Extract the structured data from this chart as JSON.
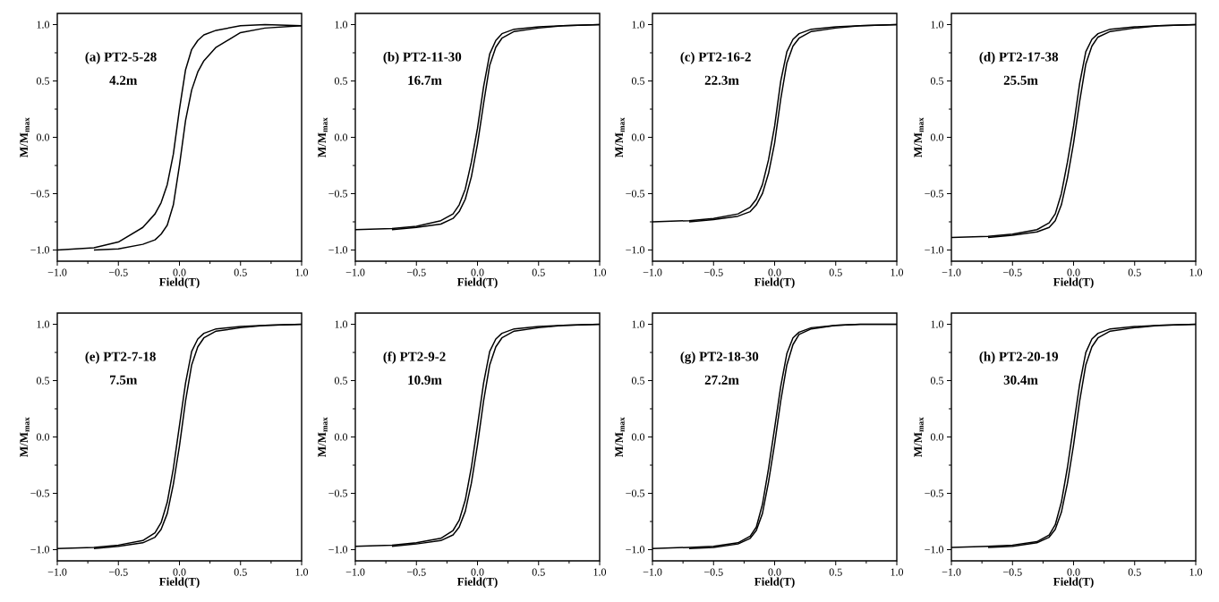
{
  "chart_data": [
    {
      "type": "line",
      "title": "(a) PT2-5-28",
      "subtitle": "4.2m",
      "xlabel": "Field(T)",
      "ylabel": "M/M$_{max}$",
      "xlim": [
        -1,
        1
      ],
      "ylim": [
        -1.1,
        1.1
      ],
      "xticks": [
        {
          "value": -1,
          "label": "−1.0"
        },
        {
          "value": -0.75,
          "label": null
        },
        {
          "value": -0.5,
          "label": "−0.5"
        },
        {
          "value": -0.25,
          "label": null
        },
        {
          "value": 0,
          "label": "0.0"
        },
        {
          "value": 0.25,
          "label": null
        },
        {
          "value": 0.5,
          "label": "0.5"
        },
        {
          "value": 0.75,
          "label": null
        },
        {
          "value": 1,
          "label": "1.0"
        }
      ],
      "yticks": [
        {
          "value": -1,
          "label": "−1.0"
        },
        {
          "value": -0.75,
          "label": null
        },
        {
          "value": -0.5,
          "label": "−0.5"
        },
        {
          "value": -0.25,
          "label": null
        },
        {
          "value": 0,
          "label": "0.0"
        },
        {
          "value": 0.25,
          "label": null
        },
        {
          "value": 0.5,
          "label": "0.5"
        },
        {
          "value": 0.75,
          "label": null
        },
        {
          "value": 1,
          "label": "1.0"
        }
      ],
      "x": [
        -1,
        -0.7,
        -0.5,
        -0.3,
        -0.2,
        -0.15,
        -0.1,
        -0.05,
        0,
        0.05,
        0.1,
        0.15,
        0.2,
        0.3,
        0.5,
        0.7,
        1
      ],
      "series": [
        {
          "color": "#000000",
          "values": [
            -1.0,
            -0.98,
            -0.93,
            -0.8,
            -0.68,
            -0.58,
            -0.42,
            -0.15,
            0.25,
            0.6,
            0.78,
            0.86,
            0.91,
            0.95,
            0.99,
            1.0,
            0.99
          ]
        },
        {
          "color": "#000000",
          "x": [
            -0.7,
            -0.5,
            -0.3,
            -0.2,
            -0.15,
            -0.1,
            -0.05,
            0,
            0.05,
            0.1,
            0.15,
            0.2,
            0.3,
            0.5,
            0.7,
            1
          ],
          "values": [
            -1.0,
            -0.99,
            -0.95,
            -0.91,
            -0.86,
            -0.78,
            -0.6,
            -0.25,
            0.15,
            0.42,
            0.58,
            0.68,
            0.8,
            0.93,
            0.97,
            0.99
          ]
        }
      ]
    },
    {
      "type": "line",
      "title": "(b) PT2-11-30",
      "subtitle": "16.7m",
      "xlabel": "Field(T)",
      "ylabel": "M/M$_{max}$",
      "xlim": [
        -1,
        1
      ],
      "ylim": [
        -1.1,
        1.1
      ],
      "xticks": [
        {
          "value": -1,
          "label": "−1.0"
        },
        {
          "value": -0.75,
          "label": null
        },
        {
          "value": -0.5,
          "label": "−0.5"
        },
        {
          "value": -0.25,
          "label": null
        },
        {
          "value": 0,
          "label": "0.0"
        },
        {
          "value": 0.25,
          "label": null
        },
        {
          "value": 0.5,
          "label": "0.5"
        },
        {
          "value": 0.75,
          "label": null
        },
        {
          "value": 1,
          "label": "1.0"
        }
      ],
      "yticks": [
        {
          "value": -1,
          "label": "−1.0"
        },
        {
          "value": -0.75,
          "label": null
        },
        {
          "value": -0.5,
          "label": "−0.5"
        },
        {
          "value": -0.25,
          "label": null
        },
        {
          "value": 0,
          "label": "0.0"
        },
        {
          "value": 0.25,
          "label": null
        },
        {
          "value": 0.5,
          "label": "0.5"
        },
        {
          "value": 0.75,
          "label": null
        },
        {
          "value": 1,
          "label": "1.0"
        }
      ],
      "x": [
        -1,
        -0.7,
        -0.5,
        -0.3,
        -0.2,
        -0.15,
        -0.1,
        -0.05,
        0,
        0.05,
        0.1,
        0.15,
        0.2,
        0.3,
        0.5,
        0.7,
        1
      ],
      "series": [
        {
          "color": "#000000",
          "values": [
            -0.82,
            -0.81,
            -0.79,
            -0.74,
            -0.68,
            -0.6,
            -0.46,
            -0.22,
            0.08,
            0.45,
            0.74,
            0.86,
            0.92,
            0.96,
            0.98,
            0.99,
            1.0
          ]
        },
        {
          "color": "#000000",
          "x": [
            -0.7,
            -0.5,
            -0.3,
            -0.2,
            -0.15,
            -0.1,
            -0.05,
            0,
            0.05,
            0.1,
            0.15,
            0.2,
            0.3,
            0.5,
            0.7,
            1
          ],
          "values": [
            -0.82,
            -0.8,
            -0.77,
            -0.72,
            -0.66,
            -0.55,
            -0.35,
            -0.06,
            0.3,
            0.64,
            0.8,
            0.88,
            0.94,
            0.97,
            0.99,
            1.0
          ]
        }
      ]
    },
    {
      "type": "line",
      "title": "(c) PT2-16-2",
      "subtitle": "22.3m",
      "xlabel": "Field(T)",
      "ylabel": "M/M$_{max}$",
      "xlim": [
        -1,
        1
      ],
      "ylim": [
        -1.1,
        1.1
      ],
      "xticks": [
        {
          "value": -1,
          "label": "−1.0"
        },
        {
          "value": -0.75,
          "label": null
        },
        {
          "value": -0.5,
          "label": "−0.5"
        },
        {
          "value": -0.25,
          "label": null
        },
        {
          "value": 0,
          "label": "0.0"
        },
        {
          "value": 0.25,
          "label": null
        },
        {
          "value": 0.5,
          "label": "0.5"
        },
        {
          "value": 0.75,
          "label": null
        },
        {
          "value": 1,
          "label": "1.0"
        }
      ],
      "yticks": [
        {
          "value": -1,
          "label": "−1.0"
        },
        {
          "value": -0.75,
          "label": null
        },
        {
          "value": -0.5,
          "label": "−0.5"
        },
        {
          "value": -0.25,
          "label": null
        },
        {
          "value": 0,
          "label": "0.0"
        },
        {
          "value": 0.25,
          "label": null
        },
        {
          "value": 0.5,
          "label": "0.5"
        },
        {
          "value": 0.75,
          "label": null
        },
        {
          "value": 1,
          "label": "1.0"
        }
      ],
      "x": [
        -1,
        -0.7,
        -0.5,
        -0.3,
        -0.2,
        -0.15,
        -0.1,
        -0.05,
        0,
        0.05,
        0.1,
        0.15,
        0.2,
        0.3,
        0.5,
        0.7,
        1
      ],
      "series": [
        {
          "color": "#000000",
          "values": [
            -0.75,
            -0.74,
            -0.72,
            -0.68,
            -0.62,
            -0.55,
            -0.42,
            -0.2,
            0.1,
            0.5,
            0.76,
            0.87,
            0.92,
            0.96,
            0.98,
            0.99,
            1.0
          ]
        },
        {
          "color": "#000000",
          "x": [
            -0.7,
            -0.5,
            -0.3,
            -0.2,
            -0.15,
            -0.1,
            -0.05,
            0,
            0.05,
            0.1,
            0.15,
            0.2,
            0.3,
            0.5,
            0.7,
            1
          ],
          "values": [
            -0.75,
            -0.73,
            -0.7,
            -0.66,
            -0.6,
            -0.5,
            -0.32,
            -0.05,
            0.34,
            0.66,
            0.81,
            0.88,
            0.94,
            0.97,
            0.99,
            1.0
          ]
        }
      ]
    },
    {
      "type": "line",
      "title": "(d) PT2-17-38",
      "subtitle": "25.5m",
      "xlabel": "Field(T)",
      "ylabel": "M/M$_{max}$",
      "xlim": [
        -1,
        1
      ],
      "ylim": [
        -1.1,
        1.1
      ],
      "xticks": [
        {
          "value": -1,
          "label": "−1.0"
        },
        {
          "value": -0.75,
          "label": null
        },
        {
          "value": -0.5,
          "label": "−0.5"
        },
        {
          "value": -0.25,
          "label": null
        },
        {
          "value": 0,
          "label": "0.0"
        },
        {
          "value": 0.25,
          "label": null
        },
        {
          "value": 0.5,
          "label": "0.5"
        },
        {
          "value": 0.75,
          "label": null
        },
        {
          "value": 1,
          "label": "1.0"
        }
      ],
      "yticks": [
        {
          "value": -1,
          "label": "−1.0"
        },
        {
          "value": -0.75,
          "label": null
        },
        {
          "value": -0.5,
          "label": "−0.5"
        },
        {
          "value": -0.25,
          "label": null
        },
        {
          "value": 0,
          "label": "0.0"
        },
        {
          "value": 0.25,
          "label": null
        },
        {
          "value": 0.5,
          "label": "0.5"
        },
        {
          "value": 0.75,
          "label": null
        },
        {
          "value": 1,
          "label": "1.0"
        }
      ],
      "x": [
        -1,
        -0.7,
        -0.5,
        -0.3,
        -0.2,
        -0.15,
        -0.1,
        -0.05,
        0,
        0.05,
        0.1,
        0.15,
        0.2,
        0.3,
        0.5,
        0.7,
        1
      ],
      "series": [
        {
          "color": "#000000",
          "values": [
            -0.89,
            -0.88,
            -0.86,
            -0.82,
            -0.76,
            -0.68,
            -0.5,
            -0.22,
            0.1,
            0.48,
            0.76,
            0.87,
            0.92,
            0.96,
            0.98,
            0.99,
            1.0
          ]
        },
        {
          "color": "#000000",
          "x": [
            -0.7,
            -0.5,
            -0.3,
            -0.2,
            -0.15,
            -0.1,
            -0.05,
            0,
            0.05,
            0.1,
            0.15,
            0.2,
            0.3,
            0.5,
            0.7,
            1
          ],
          "values": [
            -0.89,
            -0.87,
            -0.84,
            -0.8,
            -0.74,
            -0.6,
            -0.36,
            -0.05,
            0.32,
            0.65,
            0.81,
            0.89,
            0.94,
            0.97,
            0.99,
            1.0
          ]
        }
      ]
    },
    {
      "type": "line",
      "title": "(e) PT2-7-18",
      "subtitle": "7.5m",
      "xlabel": "Field(T)",
      "ylabel": "M/M$_{max}$",
      "xlim": [
        -1,
        1
      ],
      "ylim": [
        -1.1,
        1.1
      ],
      "xticks": [
        {
          "value": -1,
          "label": "−1.0"
        },
        {
          "value": -0.75,
          "label": null
        },
        {
          "value": -0.5,
          "label": "−0.5"
        },
        {
          "value": -0.25,
          "label": null
        },
        {
          "value": 0,
          "label": "0.0"
        },
        {
          "value": 0.25,
          "label": null
        },
        {
          "value": 0.5,
          "label": "0.5"
        },
        {
          "value": 0.75,
          "label": null
        },
        {
          "value": 1,
          "label": "1.0"
        }
      ],
      "yticks": [
        {
          "value": -1,
          "label": "−1.0"
        },
        {
          "value": -0.75,
          "label": null
        },
        {
          "value": -0.5,
          "label": "−0.5"
        },
        {
          "value": -0.25,
          "label": null
        },
        {
          "value": 0,
          "label": "0.0"
        },
        {
          "value": 0.25,
          "label": null
        },
        {
          "value": 0.5,
          "label": "0.5"
        },
        {
          "value": 0.75,
          "label": null
        },
        {
          "value": 1,
          "label": "1.0"
        }
      ],
      "x": [
        -1,
        -0.7,
        -0.5,
        -0.3,
        -0.2,
        -0.15,
        -0.1,
        -0.05,
        0,
        0.05,
        0.1,
        0.15,
        0.2,
        0.3,
        0.5,
        0.7,
        1
      ],
      "series": [
        {
          "color": "#000000",
          "values": [
            -0.99,
            -0.98,
            -0.96,
            -0.92,
            -0.85,
            -0.76,
            -0.58,
            -0.28,
            0.1,
            0.48,
            0.76,
            0.87,
            0.92,
            0.96,
            0.98,
            0.99,
            1.0
          ]
        },
        {
          "color": "#000000",
          "x": [
            -0.7,
            -0.5,
            -0.3,
            -0.2,
            -0.15,
            -0.1,
            -0.05,
            0,
            0.05,
            0.1,
            0.15,
            0.2,
            0.3,
            0.5,
            0.7,
            1
          ],
          "values": [
            -0.99,
            -0.97,
            -0.94,
            -0.89,
            -0.82,
            -0.68,
            -0.42,
            -0.08,
            0.32,
            0.64,
            0.8,
            0.88,
            0.94,
            0.97,
            0.99,
            1.0
          ]
        }
      ]
    },
    {
      "type": "line",
      "title": "(f) PT2-9-2",
      "subtitle": "10.9m",
      "xlabel": "Field(T)",
      "ylabel": "M/M$_{max}$",
      "xlim": [
        -1,
        1
      ],
      "ylim": [
        -1.1,
        1.1
      ],
      "xticks": [
        {
          "value": -1,
          "label": "−1.0"
        },
        {
          "value": -0.75,
          "label": null
        },
        {
          "value": -0.5,
          "label": "−0.5"
        },
        {
          "value": -0.25,
          "label": null
        },
        {
          "value": 0,
          "label": "0.0"
        },
        {
          "value": 0.25,
          "label": null
        },
        {
          "value": 0.5,
          "label": "0.5"
        },
        {
          "value": 0.75,
          "label": null
        },
        {
          "value": 1,
          "label": "1.0"
        }
      ],
      "yticks": [
        {
          "value": -1,
          "label": "−1.0"
        },
        {
          "value": -0.75,
          "label": null
        },
        {
          "value": -0.5,
          "label": "−0.5"
        },
        {
          "value": -0.25,
          "label": null
        },
        {
          "value": 0,
          "label": "0.0"
        },
        {
          "value": 0.25,
          "label": null
        },
        {
          "value": 0.5,
          "label": "0.5"
        },
        {
          "value": 0.75,
          "label": null
        },
        {
          "value": 1,
          "label": "1.0"
        }
      ],
      "x": [
        -1,
        -0.7,
        -0.5,
        -0.3,
        -0.2,
        -0.15,
        -0.1,
        -0.05,
        0,
        0.05,
        0.1,
        0.15,
        0.2,
        0.3,
        0.5,
        0.7,
        1
      ],
      "series": [
        {
          "color": "#000000",
          "values": [
            -0.97,
            -0.96,
            -0.94,
            -0.9,
            -0.83,
            -0.74,
            -0.56,
            -0.27,
            0.1,
            0.48,
            0.76,
            0.87,
            0.92,
            0.96,
            0.98,
            0.99,
            1.0
          ]
        },
        {
          "color": "#000000",
          "x": [
            -0.7,
            -0.5,
            -0.3,
            -0.2,
            -0.15,
            -0.1,
            -0.05,
            0,
            0.05,
            0.1,
            0.15,
            0.2,
            0.3,
            0.5,
            0.7,
            1
          ],
          "values": [
            -0.97,
            -0.95,
            -0.92,
            -0.87,
            -0.8,
            -0.66,
            -0.41,
            -0.07,
            0.32,
            0.64,
            0.8,
            0.88,
            0.94,
            0.97,
            0.99,
            1.0
          ]
        }
      ]
    },
    {
      "type": "line",
      "title": "(g) PT2-18-30",
      "subtitle": "27.2m",
      "xlabel": "Field(T)",
      "ylabel": "M/M$_{max}$",
      "xlim": [
        -1,
        1
      ],
      "ylim": [
        -1.1,
        1.1
      ],
      "xticks": [
        {
          "value": -1,
          "label": "−1.0"
        },
        {
          "value": -0.75,
          "label": null
        },
        {
          "value": -0.5,
          "label": "−0.5"
        },
        {
          "value": -0.25,
          "label": null
        },
        {
          "value": 0,
          "label": "0.0"
        },
        {
          "value": 0.25,
          "label": null
        },
        {
          "value": 0.5,
          "label": "0.5"
        },
        {
          "value": 0.75,
          "label": null
        },
        {
          "value": 1,
          "label": "1.0"
        }
      ],
      "yticks": [
        {
          "value": -1,
          "label": "−1.0"
        },
        {
          "value": -0.75,
          "label": null
        },
        {
          "value": -0.5,
          "label": "−0.5"
        },
        {
          "value": -0.25,
          "label": null
        },
        {
          "value": 0,
          "label": "0.0"
        },
        {
          "value": 0.25,
          "label": null
        },
        {
          "value": 0.5,
          "label": "0.5"
        },
        {
          "value": 0.75,
          "label": null
        },
        {
          "value": 1,
          "label": "1.0"
        }
      ],
      "x": [
        -1,
        -0.7,
        -0.5,
        -0.3,
        -0.2,
        -0.15,
        -0.1,
        -0.05,
        0,
        0.05,
        0.1,
        0.15,
        0.2,
        0.3,
        0.5,
        0.7,
        1
      ],
      "series": [
        {
          "color": "#000000",
          "values": [
            -0.99,
            -0.98,
            -0.97,
            -0.94,
            -0.88,
            -0.8,
            -0.6,
            -0.28,
            0.08,
            0.45,
            0.74,
            0.88,
            0.93,
            0.97,
            0.99,
            1.0,
            1.0
          ]
        },
        {
          "color": "#000000",
          "x": [
            -0.7,
            -0.5,
            -0.3,
            -0.2,
            -0.15,
            -0.1,
            -0.05,
            0,
            0.05,
            0.1,
            0.15,
            0.2,
            0.3,
            0.5,
            0.7,
            1
          ],
          "values": [
            -0.99,
            -0.98,
            -0.95,
            -0.9,
            -0.83,
            -0.68,
            -0.4,
            -0.06,
            0.32,
            0.64,
            0.82,
            0.91,
            0.96,
            0.99,
            1.0,
            1.0
          ]
        }
      ]
    },
    {
      "type": "line",
      "title": "(h) PT2-20-19",
      "subtitle": "30.4m",
      "xlabel": "Field(T)",
      "ylabel": "M/M$_{max}$",
      "xlim": [
        -1,
        1
      ],
      "ylim": [
        -1.1,
        1.1
      ],
      "xticks": [
        {
          "value": -1,
          "label": "−1.0"
        },
        {
          "value": -0.75,
          "label": null
        },
        {
          "value": -0.5,
          "label": "−0.5"
        },
        {
          "value": -0.25,
          "label": null
        },
        {
          "value": 0,
          "label": "0.0"
        },
        {
          "value": 0.25,
          "label": null
        },
        {
          "value": 0.5,
          "label": "0.5"
        },
        {
          "value": 0.75,
          "label": null
        },
        {
          "value": 1,
          "label": "1.0"
        }
      ],
      "yticks": [
        {
          "value": -1,
          "label": "−1.0"
        },
        {
          "value": -0.75,
          "label": null
        },
        {
          "value": -0.5,
          "label": "−0.5"
        },
        {
          "value": -0.25,
          "label": null
        },
        {
          "value": 0,
          "label": "0.0"
        },
        {
          "value": 0.25,
          "label": null
        },
        {
          "value": 0.5,
          "label": "0.5"
        },
        {
          "value": 0.75,
          "label": null
        },
        {
          "value": 1,
          "label": "1.0"
        }
      ],
      "x": [
        -1,
        -0.7,
        -0.5,
        -0.3,
        -0.2,
        -0.15,
        -0.1,
        -0.05,
        0,
        0.05,
        0.1,
        0.15,
        0.2,
        0.3,
        0.5,
        0.7,
        1
      ],
      "series": [
        {
          "color": "#000000",
          "values": [
            -0.98,
            -0.97,
            -0.96,
            -0.93,
            -0.87,
            -0.78,
            -0.58,
            -0.27,
            0.1,
            0.47,
            0.75,
            0.87,
            0.92,
            0.96,
            0.98,
            0.99,
            1.0
          ]
        },
        {
          "color": "#000000",
          "x": [
            -0.7,
            -0.5,
            -0.3,
            -0.2,
            -0.15,
            -0.1,
            -0.05,
            0,
            0.05,
            0.1,
            0.15,
            0.2,
            0.3,
            0.5,
            0.7,
            1
          ],
          "values": [
            -0.98,
            -0.97,
            -0.94,
            -0.89,
            -0.82,
            -0.67,
            -0.41,
            -0.07,
            0.32,
            0.64,
            0.8,
            0.88,
            0.94,
            0.97,
            0.99,
            1.0
          ]
        }
      ]
    }
  ]
}
